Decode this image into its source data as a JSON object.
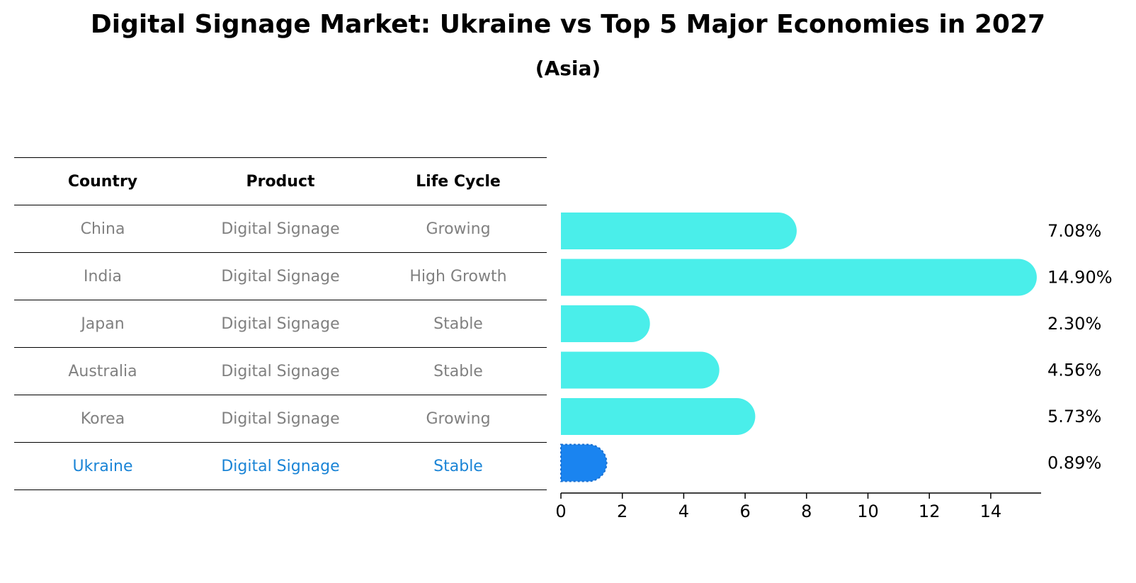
{
  "title": "Digital Signage Market: Ukraine vs Top 5 Major Economies in 2027",
  "subtitle": "(Asia)",
  "table": {
    "headers": [
      "Country",
      "Product",
      "Life Cycle"
    ],
    "rows": [
      {
        "country": "China",
        "product": "Digital Signage",
        "life_cycle": "Growing"
      },
      {
        "country": "India",
        "product": "Digital Signage",
        "life_cycle": "High Growth"
      },
      {
        "country": "Japan",
        "product": "Digital Signage",
        "life_cycle": "Stable"
      },
      {
        "country": "Australia",
        "product": "Digital Signage",
        "life_cycle": "Stable"
      },
      {
        "country": "Korea",
        "product": "Digital Signage",
        "life_cycle": "Growing"
      },
      {
        "country": "Ukraine",
        "product": "Digital Signage",
        "life_cycle": "Stable"
      }
    ]
  },
  "colors": {
    "bar": "#4aeeea",
    "highlight_bar": "#1a84f0",
    "highlight_text": "#1a84d6",
    "muted_text": "#808080"
  },
  "chart_data": {
    "type": "bar",
    "orientation": "horizontal",
    "categories": [
      "China",
      "India",
      "Japan",
      "Australia",
      "Korea",
      "Ukraine"
    ],
    "values": [
      7.08,
      14.9,
      2.3,
      4.56,
      5.73,
      0.89
    ],
    "value_labels": [
      "7.08%",
      "14.90%",
      "2.30%",
      "4.56%",
      "5.73%",
      "0.89%"
    ],
    "highlight": "Ukraine",
    "x_ticks": [
      0,
      2,
      4,
      6,
      8,
      10,
      12,
      14
    ],
    "xlim": [
      0,
      15.65
    ],
    "xlabel": "",
    "ylabel": "",
    "grid": false,
    "title": "Digital Signage Market: Ukraine vs Top 5 Major Economies in 2027",
    "subtitle": "(Asia)"
  }
}
